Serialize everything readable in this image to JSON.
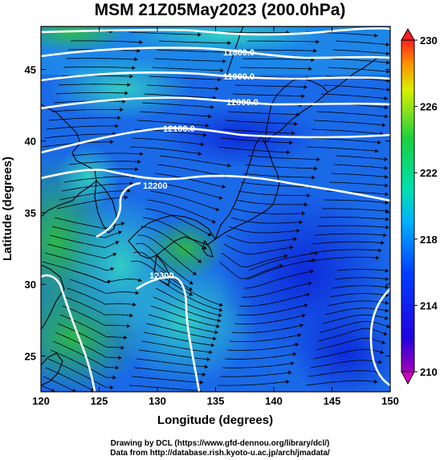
{
  "figure": {
    "title": "MSM 21Z05May2023 (200.0hPa)",
    "xlabel": "Longitude (degrees)",
    "ylabel": "Latitude  (degrees)",
    "x_ticks": [
      "120",
      "125",
      "130",
      "135",
      "140",
      "145",
      "150"
    ],
    "y_ticks": [
      "25",
      "30",
      "35",
      "40",
      "45"
    ],
    "colorbar_ticks": [
      "230",
      "226",
      "222",
      "218",
      "214",
      "210"
    ],
    "contour_labels": [
      "11800.0",
      "11900.0",
      "12000.0",
      "12100.0",
      "12200",
      "12300"
    ],
    "credit_line1": "Drawing by DCL (https://www.gfd-dennou.org/library/dcl/)",
    "credit_line2": "Data from http://database.rish.kyoto-u.ac.jp/arch/jmadata/"
  },
  "map_data": {
    "lon_range": [
      120,
      150
    ],
    "lat_range": [
      22.5,
      48
    ],
    "colorbar_range": [
      210,
      230
    ],
    "colors": {
      "land": "#000000",
      "contour": "#ffffff",
      "stream": "#000000",
      "cold": "#0a1ed8",
      "mid": "#1a82ff",
      "warm": "#33d6c2",
      "green": "#2fbf3a"
    }
  }
}
